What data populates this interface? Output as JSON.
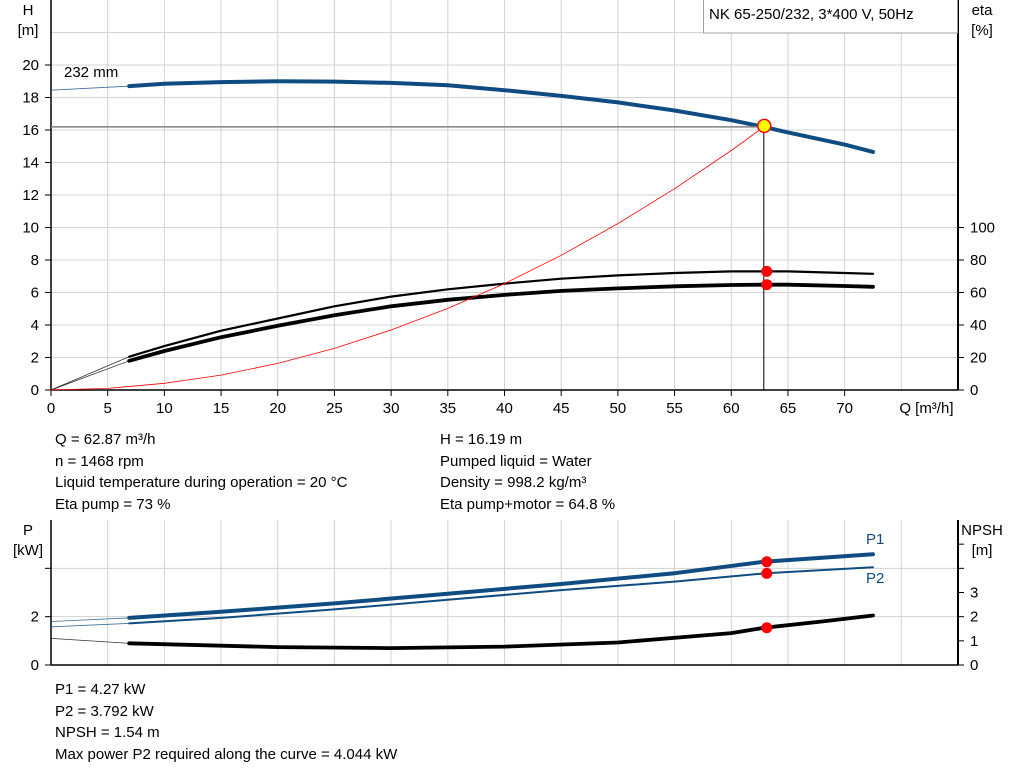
{
  "chart_data": [
    {
      "type": "line",
      "title": "NK 65-250/232, 3*400 V, 50Hz",
      "xlabel": "Q [m³/h]",
      "ylabel_left": [
        "H",
        "[m]"
      ],
      "ylabel_right": [
        "eta",
        "[%]"
      ],
      "xlim": [
        0,
        80
      ],
      "ylim_left": [
        0,
        24
      ],
      "ylim_right": [
        0,
        240
      ],
      "x_ticks": [
        0,
        5,
        10,
        15,
        20,
        25,
        30,
        35,
        40,
        45,
        50,
        55,
        60,
        65,
        70
      ],
      "y_ticks_left": [
        0,
        2,
        4,
        6,
        8,
        10,
        12,
        14,
        16,
        18,
        20
      ],
      "y_ticks_right": [
        0,
        20,
        40,
        60,
        80,
        100
      ],
      "grid": true,
      "annotation": "232 mm",
      "series": [
        {
          "key": "H",
          "axis": "left",
          "color": "#0f4c81",
          "extrapolated": [
            [
              0,
              18.45
            ],
            [
              6.9,
              18.7
            ]
          ],
          "points": [
            [
              6.9,
              18.7
            ],
            [
              10,
              18.85
            ],
            [
              15,
              18.95
            ],
            [
              20,
              19.0
            ],
            [
              25,
              18.98
            ],
            [
              30,
              18.9
            ],
            [
              35,
              18.75
            ],
            [
              40,
              18.45
            ],
            [
              45,
              18.1
            ],
            [
              50,
              17.7
            ],
            [
              55,
              17.2
            ],
            [
              60,
              16.6
            ],
            [
              62.87,
              16.19
            ],
            [
              65,
              15.85
            ],
            [
              70,
              15.1
            ],
            [
              72.5,
              14.65
            ]
          ]
        },
        {
          "key": "eta_pump",
          "axis": "right",
          "color": "#000000",
          "extrapolated": [
            [
              0,
              0
            ],
            [
              6.9,
              20.5
            ]
          ],
          "points": [
            [
              6.9,
              20.5
            ],
            [
              10,
              27
            ],
            [
              15,
              36.5
            ],
            [
              20,
              44
            ],
            [
              25,
              51.5
            ],
            [
              30,
              57.5
            ],
            [
              35,
              62
            ],
            [
              40,
              65.5
            ],
            [
              45,
              68.5
            ],
            [
              50,
              70.5
            ],
            [
              55,
              72
            ],
            [
              60,
              73
            ],
            [
              62.87,
              73
            ],
            [
              65,
              73
            ],
            [
              70,
              72
            ],
            [
              72.5,
              71.5
            ]
          ]
        },
        {
          "key": "eta_pump_motor",
          "axis": "right",
          "color": "#000000",
          "extrapolated": [
            [
              0,
              0
            ],
            [
              6.9,
              18
            ]
          ],
          "points": [
            [
              6.9,
              18
            ],
            [
              10,
              24
            ],
            [
              15,
              32.5
            ],
            [
              20,
              39.5
            ],
            [
              25,
              46
            ],
            [
              30,
              51.5
            ],
            [
              35,
              55.5
            ],
            [
              40,
              58.5
            ],
            [
              45,
              61
            ],
            [
              50,
              62.5
            ],
            [
              55,
              63.8
            ],
            [
              60,
              64.6
            ],
            [
              62.87,
              64.8
            ],
            [
              65,
              64.8
            ],
            [
              70,
              64
            ],
            [
              72.5,
              63.5
            ]
          ]
        },
        {
          "key": "system_curve",
          "axis": "left",
          "color": "#ff0000",
          "points": [
            [
              0,
              0
            ],
            [
              5,
              0.1
            ],
            [
              10,
              0.41
            ],
            [
              15,
              0.92
            ],
            [
              20,
              1.64
            ],
            [
              25,
              2.56
            ],
            [
              30,
              3.69
            ],
            [
              35,
              5.02
            ],
            [
              40,
              6.55
            ],
            [
              45,
              8.29
            ],
            [
              50,
              10.24
            ],
            [
              55,
              12.39
            ],
            [
              60,
              14.74
            ],
            [
              62.87,
              16.19
            ]
          ]
        }
      ],
      "operating_point": {
        "Q": 62.87,
        "H": 16.19,
        "eta_pump": 73,
        "eta_pump_motor": 64.8
      }
    },
    {
      "type": "line",
      "ylabel_left": [
        "P",
        "[kW]"
      ],
      "ylabel_right": [
        "NPSH",
        "[m]"
      ],
      "xlim": [
        0,
        80
      ],
      "ylim_left": [
        0,
        6
      ],
      "ylim_right": [
        0,
        6
      ],
      "y_ticks_left": [
        0,
        2,
        4
      ],
      "y_tick_labels_left": [
        "0",
        "2",
        ""
      ],
      "y_ticks_right": [
        0,
        1,
        2,
        3,
        4,
        5
      ],
      "y_tick_labels_right": [
        "0",
        "1",
        "2",
        "3",
        "",
        ""
      ],
      "grid": true,
      "series": [
        {
          "key": "P1",
          "name": "P1",
          "axis": "left",
          "color": "#0f4c81",
          "extrapolated": [
            [
              0,
              1.8
            ],
            [
              6.9,
              1.95
            ]
          ],
          "points": [
            [
              6.9,
              1.95
            ],
            [
              15,
              2.2
            ],
            [
              25,
              2.55
            ],
            [
              35,
              2.95
            ],
            [
              45,
              3.35
            ],
            [
              55,
              3.8
            ],
            [
              62.87,
              4.27
            ],
            [
              72.5,
              4.58
            ]
          ]
        },
        {
          "key": "P2",
          "name": "P2",
          "axis": "left",
          "color": "#0f4c81",
          "extrapolated": [
            [
              0,
              1.58
            ],
            [
              6.9,
              1.72
            ]
          ],
          "points": [
            [
              6.9,
              1.72
            ],
            [
              15,
              1.95
            ],
            [
              25,
              2.3
            ],
            [
              35,
              2.7
            ],
            [
              45,
              3.1
            ],
            [
              55,
              3.45
            ],
            [
              62.87,
              3.792
            ],
            [
              72.5,
              4.044
            ]
          ]
        },
        {
          "key": "NPSH",
          "axis": "right",
          "color": "#000000",
          "extrapolated": [
            [
              0,
              1.1
            ],
            [
              6.9,
              0.9
            ]
          ],
          "points": [
            [
              6.9,
              0.9
            ],
            [
              15,
              0.8
            ],
            [
              20,
              0.74
            ],
            [
              30,
              0.7
            ],
            [
              40,
              0.76
            ],
            [
              50,
              0.93
            ],
            [
              60,
              1.32
            ],
            [
              62.87,
              1.54
            ],
            [
              68,
              1.8
            ],
            [
              72.5,
              2.05
            ]
          ]
        }
      ],
      "operating_point": {
        "Q": 62.87,
        "P1": 4.27,
        "P2": 3.792,
        "NPSH": 1.54
      }
    }
  ],
  "info_top": {
    "left": [
      "Q = 62.87 m³/h",
      "n = 1468 rpm",
      "Liquid temperature during operation = 20 °C",
      "Eta pump = 73 %"
    ],
    "right": [
      "H = 16.19 m",
      "Pumped liquid = Water",
      "Density = 998.2 kg/m³",
      "Eta pump+motor = 64.8 %"
    ]
  },
  "info_bottom": [
    "P1 = 4.27 kW",
    "P2 = 3.792 kW",
    "NPSH = 1.54 m",
    "Max power P2 required along the curve = 4.044 kW"
  ],
  "colors": {
    "head": "#0f4c81",
    "power": "#0f4c81",
    "system": "#ff0000",
    "marker": "#ff0000",
    "op_point": "#ffff00",
    "grid": "#d3d3d3"
  }
}
